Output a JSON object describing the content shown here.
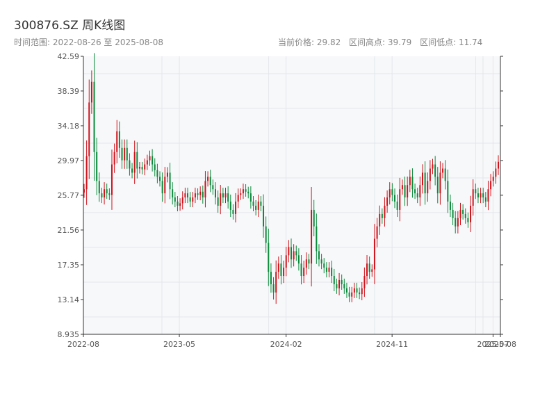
{
  "header": {
    "title": "300876.SZ 周K线图",
    "range": "时间范围: 2022-08-26 至 2025-08-08",
    "current": "当前价格: 29.82",
    "high": "区间高点: 39.79",
    "low": "区间低点: 11.74"
  },
  "colors": {
    "up": "#d0121b",
    "down": "#0a8a3a",
    "grid": "#e3e6ea",
    "plot_bg": "#f7f8fa"
  },
  "chart_data": {
    "type": "candlestick",
    "title": "300876.SZ 周K线图",
    "xlabel": "",
    "ylabel": "",
    "start_date": "2022-08-26",
    "end_date": "2025-08-08",
    "ylim": [
      8.935,
      42.59
    ],
    "y_ticks": [
      8.935,
      13.14,
      17.35,
      21.56,
      25.77,
      29.97,
      34.18,
      38.39,
      42.59
    ],
    "y_tick_labels": [
      "8.935",
      "13.14",
      "17.35",
      "21.56",
      "25.77",
      "29.97",
      "34.18",
      "38.39",
      "42.59"
    ],
    "x_ticks": [
      "2022-08",
      "2023-05",
      "2024-02",
      "2024-11",
      "2025-07",
      "2025-08"
    ],
    "x_tick_dates": [
      "2022-08-26",
      "2023-05-01",
      "2024-02-01",
      "2024-11-01",
      "2025-07-20",
      "2025-08-08"
    ],
    "grid": true,
    "weekly_close": [
      26.5,
      30.5,
      37.0,
      39.5,
      31.0,
      27.5,
      26.0,
      25.5,
      26.5,
      26.0,
      25.8,
      29.5,
      31.0,
      33.5,
      31.5,
      30.0,
      31.5,
      30.0,
      29.0,
      28.5,
      31.0,
      29.0,
      29.2,
      28.9,
      29.5,
      30.0,
      30.5,
      29.5,
      28.8,
      28.0,
      27.5,
      26.0,
      28.0,
      28.5,
      26.5,
      25.5,
      25.0,
      24.5,
      24.8,
      25.5,
      26.0,
      25.5,
      25.0,
      25.5,
      26.0,
      25.8,
      26.2,
      25.5,
      27.5,
      28.0,
      27.0,
      26.5,
      25.5,
      24.5,
      26.0,
      25.5,
      26.0,
      25.0,
      24.0,
      23.5,
      25.0,
      25.8,
      26.0,
      26.5,
      26.2,
      26.0,
      25.0,
      24.5,
      24.0,
      25.0,
      24.5,
      22.0,
      20.0,
      16.5,
      15.0,
      14.0,
      16.5,
      17.5,
      16.0,
      17.0,
      18.5,
      19.5,
      18.0,
      19.0,
      18.5,
      17.5,
      16.0,
      17.0,
      18.0,
      17.5,
      24.0,
      22.0,
      19.0,
      18.0,
      17.5,
      17.0,
      16.5,
      17.0,
      16.0,
      15.0,
      14.5,
      15.5,
      15.0,
      14.5,
      14.0,
      13.5,
      14.0,
      14.5,
      14.0,
      13.8,
      14.5,
      16.0,
      17.5,
      16.5,
      16.8,
      20.5,
      22.0,
      23.5,
      23.0,
      24.5,
      25.5,
      26.5,
      25.8,
      25.0,
      24.0,
      26.5,
      27.0,
      25.5,
      27.0,
      28.0,
      26.5,
      26.0,
      25.5,
      27.0,
      28.5,
      26.0,
      27.5,
      29.0,
      29.5,
      28.0,
      26.0,
      28.5,
      29.0,
      27.5,
      25.0,
      24.0,
      23.0,
      22.0,
      23.0,
      24.0,
      23.5,
      23.0,
      22.5,
      24.5,
      26.5,
      26.0,
      25.5,
      26.0,
      25.5,
      25.0,
      26.5,
      27.5,
      28.0,
      29.0,
      29.82
    ]
  }
}
